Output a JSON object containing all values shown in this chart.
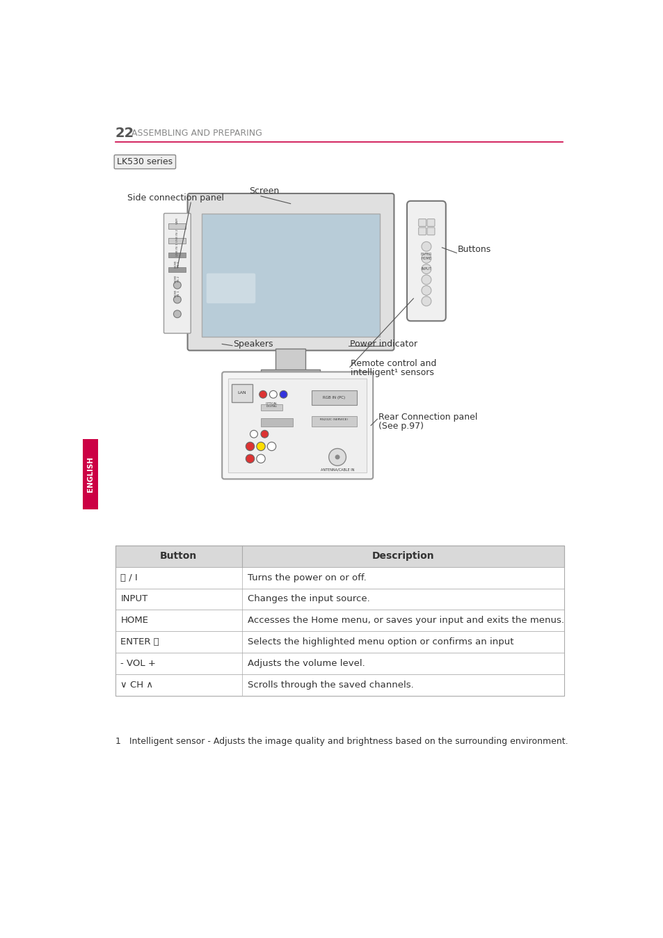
{
  "page_num": "22",
  "section_title": "ASSEMBLING AND PREPARING",
  "series_label": "LK530 series",
  "line_color": "#cc0044",
  "header_bg": "#d9d9d9",
  "table_headers": [
    "Button",
    "Description"
  ],
  "table_rows": [
    [
      "⏻ / I",
      "Turns the power on or off."
    ],
    [
      "INPUT",
      "Changes the input source."
    ],
    [
      "HOME",
      "Accesses the Home menu, or saves your input and exits the menus."
    ],
    [
      "ENTER ⓨ",
      "Selects the highlighted menu option or confirms an input"
    ],
    [
      "- VOL +",
      "Adjusts the volume level."
    ],
    [
      "∨ CH ∧",
      "Scrolls through the saved channels."
    ]
  ],
  "footnote": "1   Intelligent sensor - Adjusts the image quality and brightness based on the surrounding environment.",
  "labels": {
    "side_panel": "Side connection panel",
    "screen": "Screen",
    "buttons": "Buttons",
    "speakers": "Speakers",
    "power_indicator": "Power indicator",
    "remote_sensors_line1": "Remote control and",
    "remote_sensors_line2": "intelligent¹ sensors",
    "rear_panel_line1": "Rear Connection panel",
    "rear_panel_line2": "(See p.97)"
  },
  "english_tab_color": "#cc0044",
  "english_text": "ENGLISH"
}
